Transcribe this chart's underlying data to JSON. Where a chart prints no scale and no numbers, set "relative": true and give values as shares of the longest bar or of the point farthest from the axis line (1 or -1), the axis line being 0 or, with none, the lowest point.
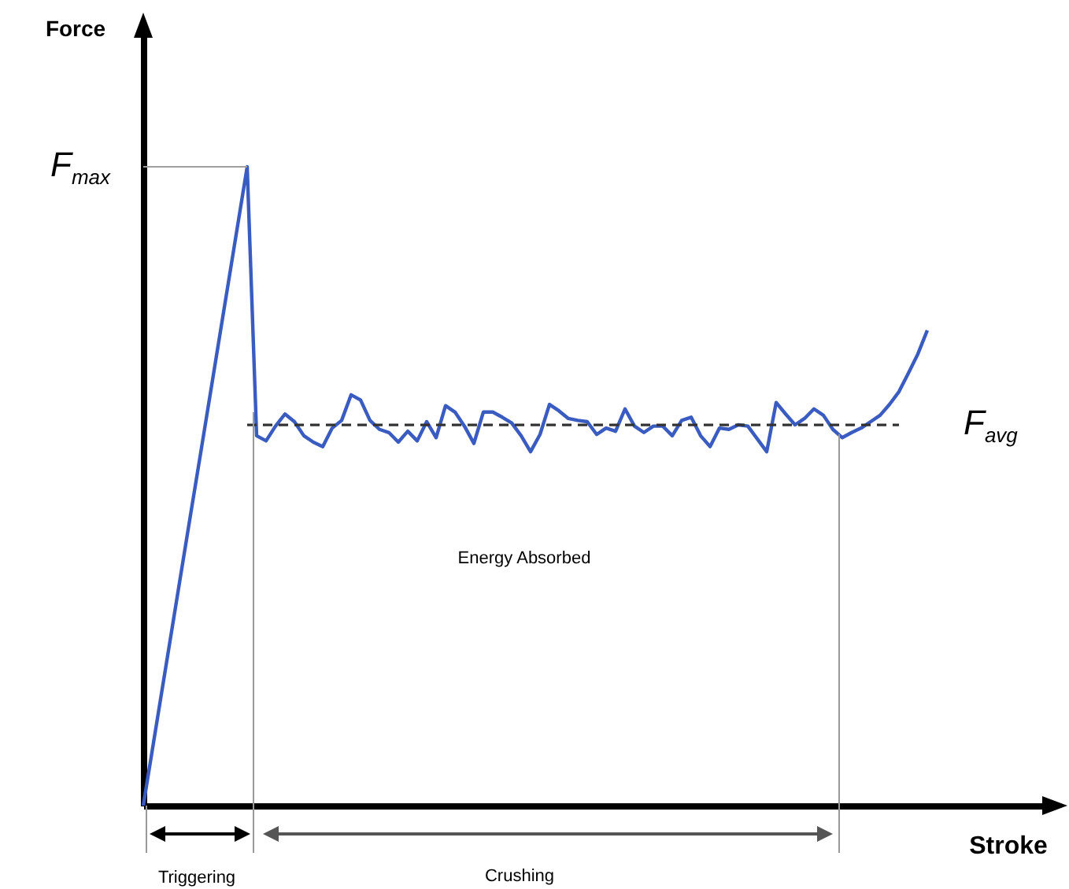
{
  "chart_data": {
    "type": "line",
    "relative": true,
    "xlabel": "Stroke",
    "categories": [
      null,
      null,
      null,
      null,
      null,
      null,
      null,
      null,
      null,
      null,
      null,
      null,
      null,
      null,
      null,
      null,
      null,
      null,
      null,
      null,
      null,
      null,
      null,
      null,
      null,
      null,
      null,
      null,
      null,
      null,
      null,
      null,
      null,
      null,
      null,
      null,
      null,
      null,
      null,
      null,
      null,
      null,
      null,
      null,
      null,
      null,
      null,
      null,
      null,
      null,
      null,
      null,
      null,
      null,
      null,
      null,
      null,
      null,
      null,
      null,
      null,
      null,
      null,
      null,
      null,
      null,
      null,
      null,
      null,
      null,
      null,
      null,
      null,
      null,
      null,
      null,
      null,
      null,
      null,
      null,
      null,
      null,
      null,
      null
    ],
    "series": [
      {
        "color": "#3a5bbf",
        "values": [
          0,
          0.091,
          0.182,
          0.273,
          0.364,
          0.455,
          0.545,
          0.636,
          0.727,
          0.818,
          0.909,
          1,
          0.579,
          0.571,
          0.594,
          0.613,
          0.601,
          0.579,
          0.569,
          0.562,
          0.591,
          0.603,
          0.643,
          0.635,
          0.603,
          0.589,
          0.584,
          0.569,
          0.586,
          0.571,
          0.601,
          0.576,
          0.626,
          0.616,
          0.594,
          0.567,
          0.616,
          0.616,
          0.608,
          0.599,
          0.579,
          0.554,
          0.581,
          0.628,
          0.618,
          0.606,
          0.603,
          0.601,
          0.581,
          0.591,
          0.586,
          0.621,
          0.594,
          0.584,
          0.594,
          0.594,
          0.579,
          0.603,
          0.608,
          0.579,
          0.562,
          0.591,
          0.589,
          0.596,
          0.594,
          0.574,
          0.554,
          0.631,
          0.613,
          0.596,
          0.606,
          0.621,
          0.611,
          0.589,
          0.576,
          0.584,
          0.591,
          0.601,
          0.611,
          0.628,
          0.648,
          0.677,
          0.707,
          0.744
        ]
      }
    ],
    "ref_lines": [
      {
        "axis": "y",
        "value": 1,
        "label": "F$_{max}$",
        "color": "#a0a0a0"
      },
      {
        "axis": "y",
        "value": 0.596,
        "label": "F$_{avg}$",
        "color": "#333333",
        "line_style": "dashed"
      }
    ],
    "annotations": [
      "Force",
      "Energy Absorbed",
      "Triggering",
      "Crushing"
    ],
    "grid": false,
    "legend": false,
    "marker": "none",
    "line_style": "solid"
  }
}
